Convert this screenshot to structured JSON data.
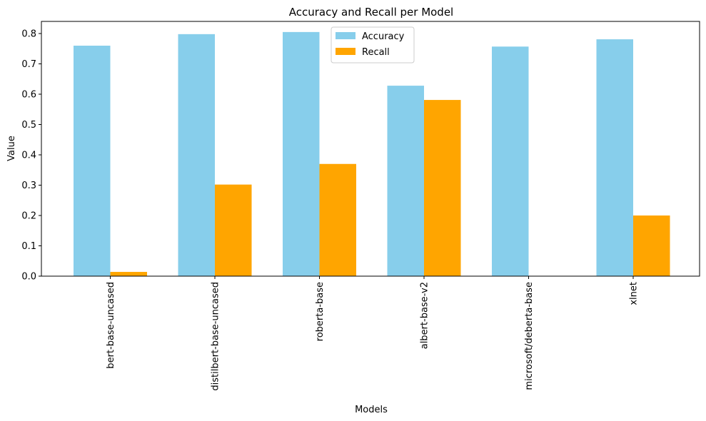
{
  "chart_data": {
    "type": "bar",
    "title": "Accuracy and Recall per Model",
    "xlabel": "Models",
    "ylabel": "Value",
    "categories": [
      "bert-base-uncased",
      "distilbert-base-uncased",
      "roberta-base",
      "albert-base-v2",
      "microsoft/deberta-base",
      "xlnet"
    ],
    "series": [
      {
        "name": "Accuracy",
        "color": "#87ceeb",
        "values": [
          0.76,
          0.798,
          0.805,
          0.628,
          0.757,
          0.781
        ]
      },
      {
        "name": "Recall",
        "color": "#ffa500",
        "values": [
          0.014,
          0.302,
          0.37,
          0.581,
          0.0,
          0.2
        ]
      }
    ],
    "ylim": [
      0,
      0.84
    ],
    "yticks": [
      "0.0",
      "0.1",
      "0.2",
      "0.3",
      "0.4",
      "0.5",
      "0.6",
      "0.7",
      "0.8"
    ],
    "grid": false,
    "legend_position": "top-center"
  }
}
